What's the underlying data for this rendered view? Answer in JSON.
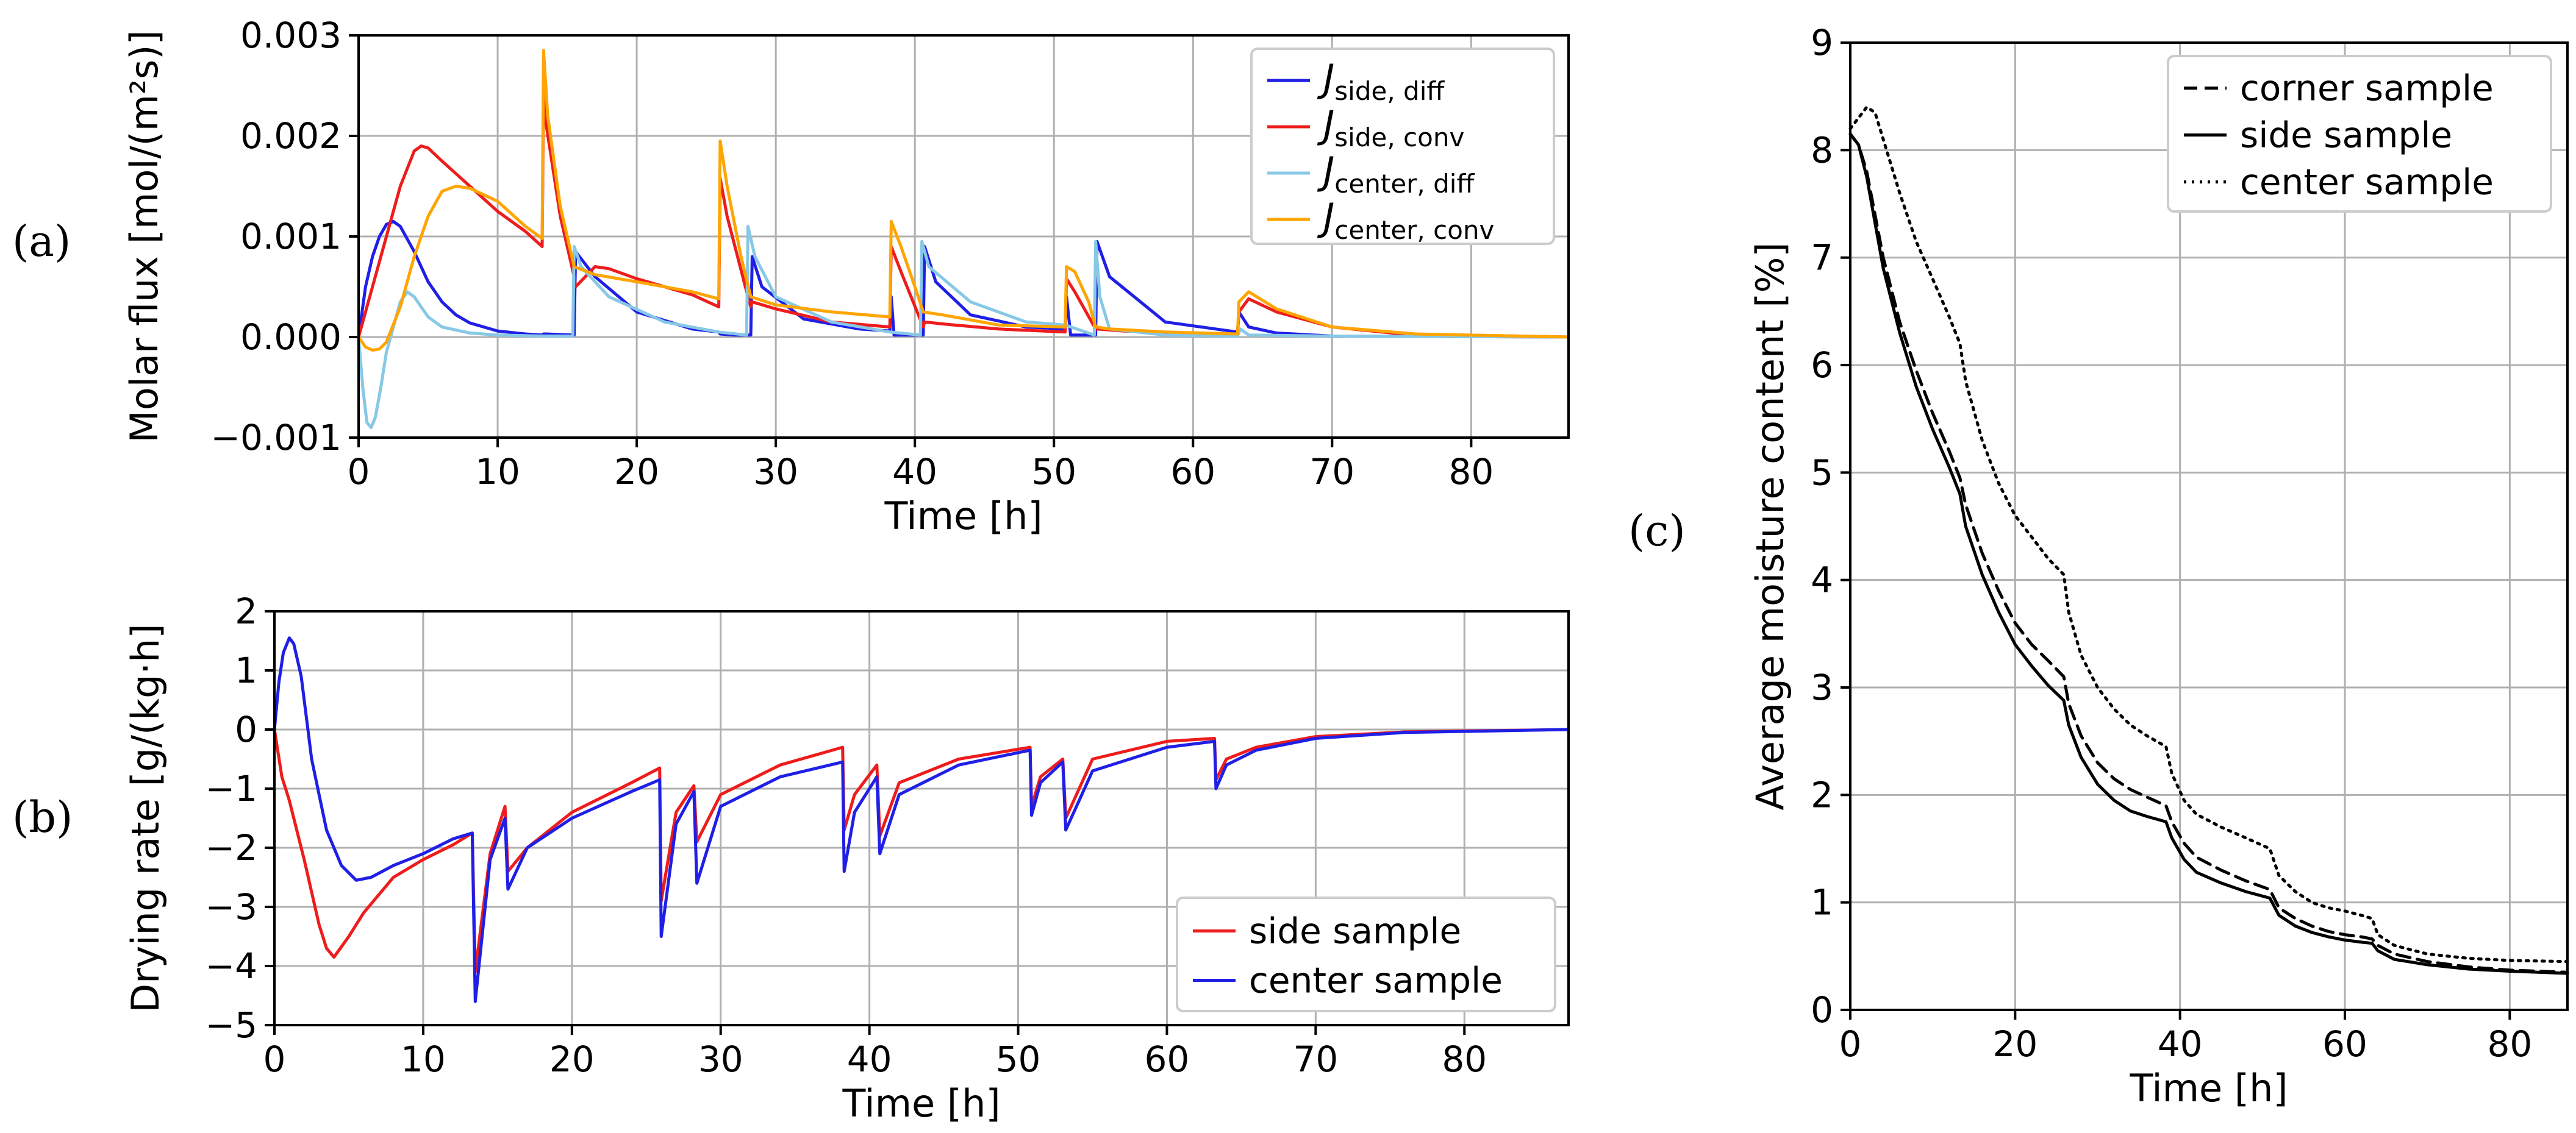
{
  "panel_labels": {
    "a": "(a)",
    "b": "(b)",
    "c": "(c)"
  },
  "colors": {
    "blue": "#1f1fe6",
    "red": "#ee1c1c",
    "lightblue": "#87c8e6",
    "orange": "#ffa500",
    "black": "#000000"
  },
  "chart_data": [
    {
      "id": "a",
      "type": "line",
      "title": "",
      "xlabel": "Time [h]",
      "ylabel": "Molar flux [mol/(m²s)]",
      "xlim": [
        0,
        87
      ],
      "ylim": [
        -0.001,
        0.003
      ],
      "xticks": [
        0,
        10,
        20,
        30,
        40,
        50,
        60,
        70,
        80
      ],
      "xtick_labels": [
        "0",
        "10",
        "20",
        "30",
        "40",
        "50",
        "60",
        "70",
        "80"
      ],
      "yticks": [
        -0.001,
        0.0,
        0.001,
        0.002,
        0.003
      ],
      "ytick_labels": [
        "−0.001",
        "0.000",
        "0.001",
        "0.002",
        "0.003"
      ],
      "grid": true,
      "legend": "top-right",
      "series": [
        {
          "name": "J",
          "sub": "side, diff",
          "color": "#1f1fe6",
          "x": [
            0,
            0.5,
            1,
            1.5,
            2,
            2.5,
            3,
            4,
            5,
            6,
            7,
            8,
            10,
            12,
            13.2,
            13.3,
            13.5,
            15.5,
            15.6,
            17,
            20,
            24,
            25.9,
            26,
            27,
            28.2,
            28.3,
            29,
            32,
            36,
            38.2,
            38.3,
            38.5,
            40.6,
            40.7,
            41.5,
            44,
            48,
            50.8,
            50.9,
            51.2,
            53,
            53.1,
            54,
            58,
            63.2,
            63.3,
            64,
            66,
            70,
            87
          ],
          "y": [
            0,
            0.0005,
            0.0008,
            0.001,
            0.00112,
            0.00115,
            0.0011,
            0.00085,
            0.00055,
            0.00035,
            0.00022,
            0.00014,
            6e-05,
            3e-05,
            2e-05,
            3e-05,
            3e-05,
            2e-05,
            0.00085,
            0.0006,
            0.00025,
            8e-05,
            5e-05,
            3e-05,
            2e-05,
            2e-05,
            0.0008,
            0.0005,
            0.00018,
            8e-05,
            6e-05,
            0.0004,
            2e-05,
            2e-05,
            0.0009,
            0.00055,
            0.00022,
            0.0001,
            8e-05,
            0.0004,
            2e-05,
            2e-05,
            0.00095,
            0.0006,
            0.00015,
            5e-05,
            0.00025,
            0.0001,
            4e-05,
            1e-05,
            0.0
          ]
        },
        {
          "name": "J",
          "sub": "side, conv",
          "color": "#ee1c1c",
          "x": [
            0,
            1,
            2,
            3,
            4,
            4.5,
            5,
            6,
            8,
            10,
            12,
            13.2,
            13.3,
            13.5,
            14.5,
            15.5,
            15.6,
            17,
            18,
            20,
            24,
            25.9,
            26,
            26.5,
            28,
            28.2,
            28.3,
            30,
            34,
            38.2,
            38.3,
            39,
            40.6,
            40.7,
            42,
            46,
            50.8,
            50.9,
            51.5,
            53,
            53.1,
            55,
            60,
            63.2,
            63.3,
            64,
            66,
            70,
            75,
            87
          ],
          "y": [
            0,
            0.0005,
            0.001,
            0.0015,
            0.00185,
            0.0019,
            0.00188,
            0.00175,
            0.0015,
            0.00125,
            0.00105,
            0.0009,
            0.0025,
            0.0021,
            0.0012,
            0.0006,
            0.0005,
            0.0007,
            0.00068,
            0.00058,
            0.00042,
            0.0003,
            0.00158,
            0.0012,
            0.0004,
            0.0003,
            0.00035,
            0.00028,
            0.00015,
            0.0001,
            0.0009,
            0.00065,
            0.0001,
            0.00015,
            0.00013,
            8e-05,
            5e-05,
            0.00058,
            0.00045,
            8e-05,
            8e-05,
            6e-05,
            3e-05,
            3e-05,
            0.00025,
            0.00038,
            0.00025,
            0.0001,
            3e-05,
            0.0
          ]
        },
        {
          "name": "J",
          "sub": "center, diff",
          "color": "#87c8e6",
          "x": [
            0,
            0.3,
            0.6,
            0.9,
            1.2,
            1.6,
            2,
            2.5,
            3,
            3.5,
            4,
            5,
            6,
            8,
            10,
            13.2,
            15.4,
            15.5,
            16,
            18,
            22,
            25.9,
            27.9,
            28,
            28.5,
            30,
            34,
            38.2,
            40.4,
            40.5,
            41,
            44,
            48,
            50.8,
            52.9,
            53,
            53.3,
            54,
            58,
            63.2,
            63.4,
            64,
            70,
            87
          ],
          "y": [
            0,
            -0.0005,
            -0.00085,
            -0.0009,
            -0.0008,
            -0.0005,
            -0.00015,
            0.0001,
            0.00035,
            0.00045,
            0.0004,
            0.0002,
            0.0001,
            4e-05,
            2e-05,
            1e-05,
            1e-05,
            0.0009,
            0.0007,
            0.0004,
            0.00015,
            5e-05,
            2e-05,
            0.0011,
            0.0008,
            0.0004,
            0.00015,
            5e-05,
            2e-05,
            0.00095,
            0.0007,
            0.00035,
            0.00015,
            0.00012,
            2e-05,
            0.00095,
            0.0004,
            8e-05,
            2e-05,
            1e-05,
            8e-05,
            2e-05,
            1e-05,
            0.0
          ]
        },
        {
          "name": "J",
          "sub": "center, conv",
          "color": "#ffa500",
          "x": [
            0,
            0.5,
            1,
            1.5,
            2,
            3,
            4,
            5,
            6,
            7,
            8,
            10,
            12,
            13.2,
            13.3,
            13.6,
            14.5,
            15.5,
            17,
            20,
            24,
            25.9,
            26,
            26.5,
            27.5,
            28.2,
            30,
            34,
            38.2,
            38.3,
            39,
            40,
            40.6,
            42,
            46,
            50.8,
            50.9,
            51.5,
            52.5,
            53,
            54,
            58,
            63.2,
            63.3,
            64,
            66,
            70,
            76,
            87
          ],
          "y": [
            0,
            -0.0001,
            -0.00013,
            -0.00012,
            -5e-05,
            0.0003,
            0.0008,
            0.0012,
            0.00145,
            0.0015,
            0.00148,
            0.00135,
            0.0011,
            0.00098,
            0.00285,
            0.0022,
            0.0013,
            0.0007,
            0.00062,
            0.00055,
            0.00045,
            0.00038,
            0.00195,
            0.0015,
            0.0008,
            0.0004,
            0.00032,
            0.00025,
            0.0002,
            0.00115,
            0.0009,
            0.0005,
            0.00025,
            0.00022,
            0.00012,
            0.0001,
            0.0007,
            0.00065,
            0.00035,
            0.0001,
            8e-05,
            5e-05,
            3e-05,
            0.00035,
            0.00045,
            0.00028,
            0.0001,
            3e-05,
            0.0
          ]
        }
      ]
    },
    {
      "id": "b",
      "type": "line",
      "title": "",
      "xlabel": "Time [h]",
      "ylabel": "Drying rate [g/(kg·h]",
      "xlim": [
        0,
        87
      ],
      "ylim": [
        -5,
        2
      ],
      "xticks": [
        0,
        10,
        20,
        30,
        40,
        50,
        60,
        70,
        80
      ],
      "xtick_labels": [
        "0",
        "10",
        "20",
        "30",
        "40",
        "50",
        "60",
        "70",
        "80"
      ],
      "yticks": [
        -5,
        -4,
        -3,
        -2,
        -1,
        0,
        1,
        2
      ],
      "ytick_labels": [
        "−5",
        "−4",
        "−3",
        "−2",
        "−1",
        "0",
        "1",
        "2"
      ],
      "grid": true,
      "legend": "bottom-right",
      "series": [
        {
          "name": "side sample",
          "color": "#ee1c1c",
          "x": [
            0,
            0.5,
            1,
            2,
            3,
            3.5,
            4,
            5,
            6,
            8,
            10,
            12,
            13.3,
            13.5,
            14.5,
            15.5,
            15.7,
            17,
            20,
            24,
            25.9,
            26,
            27,
            28.2,
            28.4,
            30,
            34,
            38.2,
            38.3,
            39,
            40.5,
            40.7,
            42,
            46,
            50.8,
            50.9,
            51.5,
            53,
            53.2,
            55,
            60,
            63.2,
            63.3,
            64,
            66,
            70,
            76,
            87
          ],
          "y": [
            0,
            -0.8,
            -1.2,
            -2.2,
            -3.3,
            -3.7,
            -3.85,
            -3.5,
            -3.1,
            -2.5,
            -2.2,
            -1.95,
            -1.75,
            -4.1,
            -2.1,
            -1.3,
            -2.4,
            -2.0,
            -1.4,
            -0.9,
            -0.65,
            -2.9,
            -1.4,
            -0.95,
            -1.9,
            -1.1,
            -0.6,
            -0.3,
            -1.7,
            -1.1,
            -0.6,
            -1.8,
            -0.9,
            -0.5,
            -0.3,
            -1.3,
            -0.8,
            -0.5,
            -1.5,
            -0.5,
            -0.2,
            -0.15,
            -0.85,
            -0.5,
            -0.3,
            -0.12,
            -0.04,
            0.0
          ]
        },
        {
          "name": "center sample",
          "color": "#1f1fe6",
          "x": [
            0,
            0.3,
            0.6,
            1,
            1.3,
            1.8,
            2.5,
            3.5,
            4.5,
            5.5,
            6.5,
            8,
            10,
            12,
            13.3,
            13.5,
            14.5,
            15.5,
            15.7,
            17,
            20,
            24,
            25.9,
            26,
            27,
            28.2,
            28.4,
            30,
            34,
            38.2,
            38.3,
            39,
            40.5,
            40.7,
            42,
            46,
            50.8,
            50.9,
            51.5,
            53,
            53.2,
            55,
            60,
            63.2,
            63.3,
            64,
            66,
            70,
            76,
            87
          ],
          "y": [
            0,
            0.8,
            1.3,
            1.55,
            1.45,
            0.9,
            -0.5,
            -1.7,
            -2.3,
            -2.55,
            -2.5,
            -2.3,
            -2.1,
            -1.85,
            -1.75,
            -4.6,
            -2.2,
            -1.5,
            -2.7,
            -2.0,
            -1.5,
            -1.05,
            -0.85,
            -3.5,
            -1.6,
            -1.05,
            -2.6,
            -1.3,
            -0.8,
            -0.55,
            -2.4,
            -1.4,
            -0.8,
            -2.1,
            -1.1,
            -0.6,
            -0.35,
            -1.45,
            -0.9,
            -0.55,
            -1.7,
            -0.7,
            -0.3,
            -0.2,
            -1.0,
            -0.6,
            -0.35,
            -0.15,
            -0.05,
            0.0
          ]
        }
      ]
    },
    {
      "id": "c",
      "type": "line",
      "title": "",
      "xlabel": "Time [h]",
      "ylabel": "Average moisture content [%]",
      "xlim": [
        0,
        87
      ],
      "ylim": [
        0,
        9
      ],
      "xticks": [
        0,
        20,
        40,
        60,
        80
      ],
      "xtick_labels": [
        "0",
        "20",
        "40",
        "60",
        "80"
      ],
      "yticks": [
        0,
        1,
        2,
        3,
        4,
        5,
        6,
        7,
        8,
        9
      ],
      "ytick_labels": [
        "0",
        "1",
        "2",
        "3",
        "4",
        "5",
        "6",
        "7",
        "8",
        "9"
      ],
      "grid": true,
      "legend": "top-right",
      "series": [
        {
          "name": "corner sample",
          "color": "#000000",
          "dash": "22,12",
          "x": [
            0,
            1,
            2,
            4,
            6,
            8,
            10,
            12,
            13.3,
            14,
            16,
            18,
            20,
            22,
            24,
            25.9,
            26.5,
            28,
            30,
            32,
            34,
            36,
            38.3,
            39,
            40.5,
            42,
            45,
            48,
            50.9,
            52,
            54,
            56,
            58,
            60,
            62,
            63.3,
            64,
            66,
            70,
            75,
            80,
            87
          ],
          "y": [
            8.15,
            8.05,
            7.8,
            7.0,
            6.4,
            5.95,
            5.55,
            5.2,
            4.95,
            4.7,
            4.25,
            3.9,
            3.6,
            3.4,
            3.25,
            3.1,
            2.85,
            2.55,
            2.3,
            2.15,
            2.05,
            1.98,
            1.9,
            1.75,
            1.55,
            1.42,
            1.3,
            1.2,
            1.12,
            0.95,
            0.85,
            0.78,
            0.73,
            0.7,
            0.68,
            0.66,
            0.6,
            0.52,
            0.45,
            0.4,
            0.37,
            0.35
          ]
        },
        {
          "name": "side sample",
          "color": "#000000",
          "dash": "",
          "x": [
            0,
            1,
            2,
            4,
            6,
            8,
            10,
            12,
            13.3,
            14,
            16,
            18,
            20,
            22,
            24,
            25.9,
            26.5,
            28,
            30,
            32,
            34,
            36,
            38.3,
            39,
            40.5,
            42,
            45,
            48,
            50.9,
            52,
            54,
            56,
            58,
            60,
            62,
            63.3,
            64,
            66,
            70,
            75,
            80,
            87
          ],
          "y": [
            8.15,
            8.05,
            7.75,
            6.9,
            6.3,
            5.8,
            5.4,
            5.05,
            4.8,
            4.5,
            4.05,
            3.7,
            3.4,
            3.2,
            3.02,
            2.88,
            2.65,
            2.35,
            2.1,
            1.95,
            1.85,
            1.8,
            1.75,
            1.6,
            1.4,
            1.28,
            1.18,
            1.1,
            1.04,
            0.88,
            0.78,
            0.72,
            0.68,
            0.65,
            0.63,
            0.62,
            0.55,
            0.47,
            0.42,
            0.38,
            0.36,
            0.34
          ]
        },
        {
          "name": "center sample",
          "color": "#000000",
          "dash": "4,9",
          "x": [
            0,
            1,
            2,
            3,
            4,
            6,
            8,
            10,
            12,
            13.3,
            14,
            16,
            18,
            20,
            22,
            24,
            25.9,
            26.5,
            28,
            30,
            32,
            34,
            36,
            38.3,
            39,
            40.5,
            42,
            45,
            48,
            50.9,
            52,
            54,
            56,
            58,
            60,
            62,
            63.3,
            64,
            66,
            70,
            75,
            80,
            87
          ],
          "y": [
            8.2,
            8.3,
            8.4,
            8.35,
            8.1,
            7.6,
            7.15,
            6.8,
            6.45,
            6.2,
            5.85,
            5.3,
            4.9,
            4.6,
            4.4,
            4.2,
            4.05,
            3.7,
            3.3,
            3.0,
            2.8,
            2.65,
            2.55,
            2.45,
            2.2,
            1.95,
            1.82,
            1.7,
            1.6,
            1.5,
            1.25,
            1.1,
            1.0,
            0.95,
            0.92,
            0.88,
            0.85,
            0.7,
            0.6,
            0.52,
            0.48,
            0.46,
            0.45
          ]
        }
      ]
    }
  ]
}
